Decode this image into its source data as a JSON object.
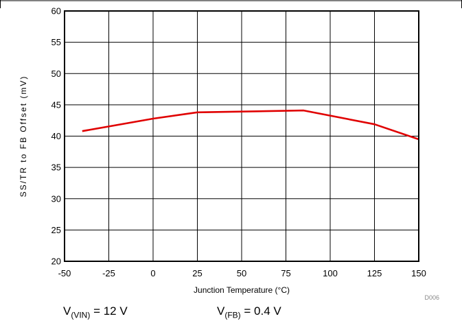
{
  "chart_data": {
    "type": "line",
    "xlabel": "Junction Temperature (°C)",
    "ylabel": "SS/TR to FB Offset (mV)",
    "xlim": [
      -50,
      150
    ],
    "ylim": [
      20,
      60
    ],
    "xticks": [
      -50,
      -25,
      0,
      25,
      50,
      75,
      100,
      125,
      150
    ],
    "yticks": [
      20,
      25,
      30,
      35,
      40,
      45,
      50,
      55,
      60
    ],
    "grid": true,
    "series": [
      {
        "color": "#e00000",
        "x": [
          -40,
          0,
          25,
          85,
          125,
          150
        ],
        "y": [
          40.8,
          42.8,
          43.8,
          44.1,
          41.9,
          39.5
        ]
      }
    ]
  },
  "figure_code": "D006",
  "conditions": {
    "vin": {
      "main": "V",
      "sub": "(VIN)",
      "rest": " = 12 V"
    },
    "vfb": {
      "main": "V",
      "sub": "(FB)",
      "rest": " = 0.4 V"
    }
  }
}
